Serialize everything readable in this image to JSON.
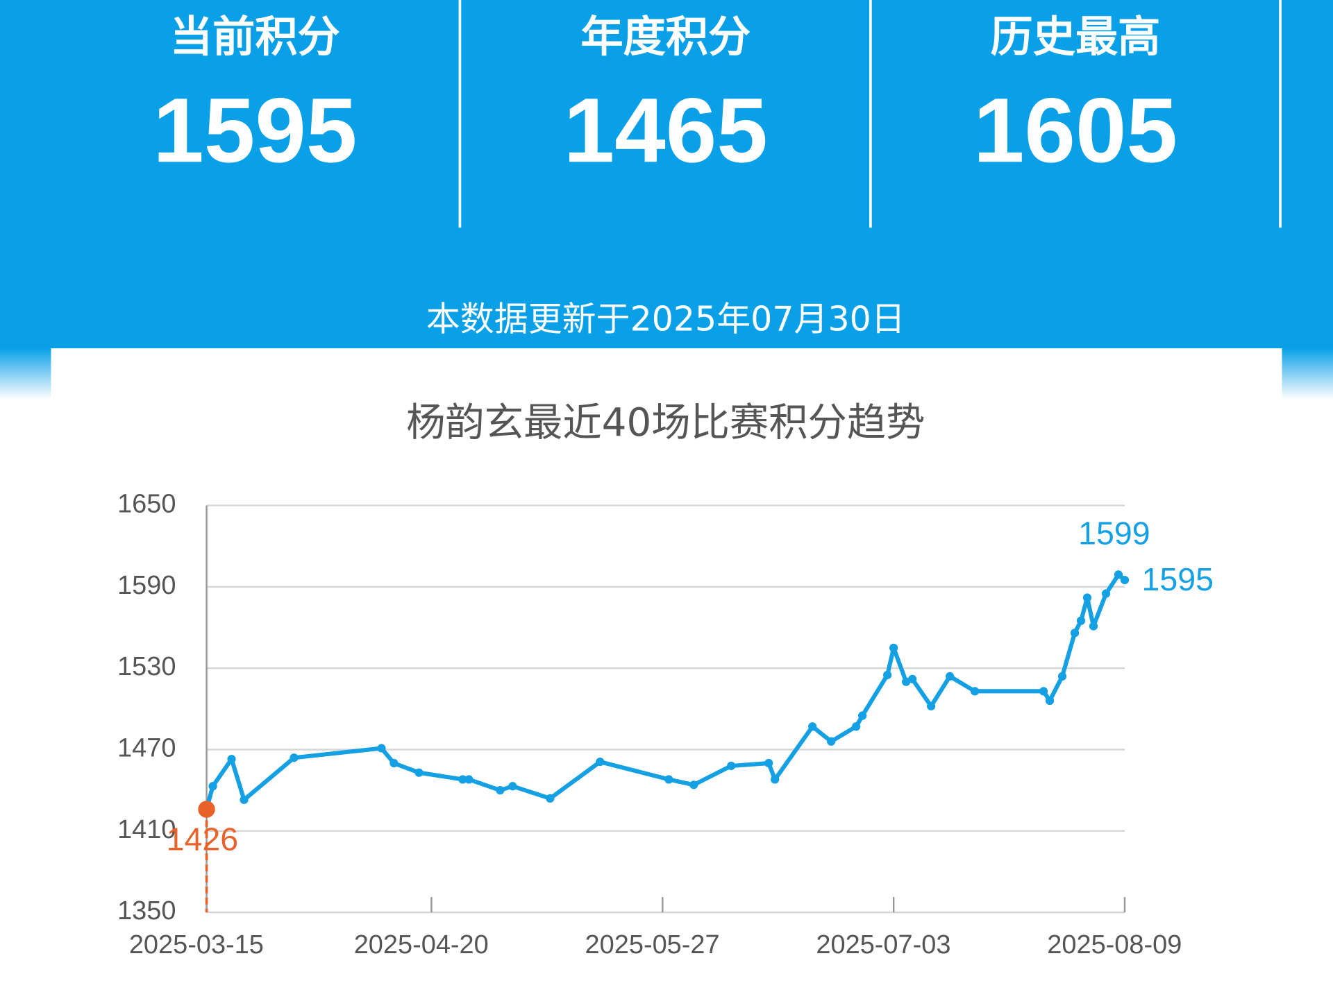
{
  "header": {
    "stats": [
      {
        "label": "当前积分",
        "value": 1595
      },
      {
        "label": "年度积分",
        "value": 1465
      },
      {
        "label": "历史最高",
        "value": 1605
      }
    ],
    "update_note": "本数据更新于2025年07月30日"
  },
  "chart_data": {
    "type": "line",
    "title": "杨韵玄最近40场比赛积分趋势",
    "x": [
      "2025-03-15",
      "2025-03-16",
      "2025-03-19",
      "2025-03-21",
      "2025-03-29",
      "2025-04-12",
      "2025-04-14",
      "2025-04-18",
      "2025-04-25",
      "2025-04-26",
      "2025-05-01",
      "2025-05-03",
      "2025-05-09",
      "2025-05-17",
      "2025-05-28",
      "2025-06-01",
      "2025-06-07",
      "2025-06-13",
      "2025-06-14",
      "2025-06-20",
      "2025-06-23",
      "2025-06-27",
      "2025-06-28",
      "2025-07-02",
      "2025-07-03",
      "2025-07-05",
      "2025-07-06",
      "2025-07-09",
      "2025-07-12",
      "2025-07-16",
      "2025-07-27",
      "2025-07-28",
      "2025-07-30",
      "2025-08-01",
      "2025-08-02",
      "2025-08-03",
      "2025-08-04",
      "2025-08-06",
      "2025-08-08",
      "2025-08-09"
    ],
    "series": [
      {
        "name": "积分",
        "color": "#14a0e2",
        "values": [
          1426,
          1443,
          1463,
          1433,
          1464,
          1471,
          1460,
          1453,
          1448,
          1448,
          1440,
          1443,
          1434,
          1461,
          1448,
          1444,
          1458,
          1460,
          1448,
          1487,
          1476,
          1487,
          1495,
          1525,
          1545,
          1520,
          1522,
          1502,
          1524,
          1513,
          1513,
          1506,
          1524,
          1556,
          1565,
          1582,
          1561,
          1585,
          1599,
          1595
        ],
        "value_labels": [
          "1426",
          null,
          null,
          null,
          null,
          null,
          null,
          null,
          null,
          null,
          null,
          null,
          null,
          null,
          null,
          null,
          null,
          null,
          null,
          null,
          null,
          null,
          null,
          null,
          null,
          null,
          null,
          null,
          null,
          null,
          null,
          null,
          null,
          null,
          null,
          null,
          null,
          null,
          "1599",
          "1595"
        ]
      }
    ],
    "min_color": "#e8622a",
    "xlim": [
      "2025-03-15",
      "2025-08-09"
    ],
    "xticks": [
      "2025-03-15",
      "2025-04-20",
      "2025-05-27",
      "2025-07-03",
      "2025-08-09"
    ],
    "ylim": [
      1350,
      1650
    ],
    "yticks": [
      1350,
      1410,
      1470,
      1530,
      1590,
      1650
    ],
    "grid": true
  }
}
